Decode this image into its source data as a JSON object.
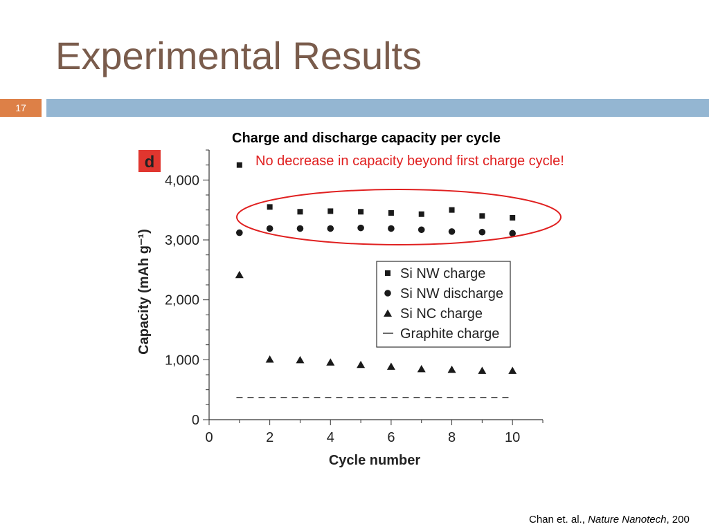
{
  "slide": {
    "title": "Experimental Results",
    "number": "17",
    "chart_heading": "Charge and discharge capacity per cycle",
    "annotation": "No decrease in capacity beyond first charge cycle!",
    "citation_authors": "Chan et. al., ",
    "citation_journal": "Nature Nanotech",
    "citation_tail": ", 200"
  },
  "colors": {
    "title": "#7a5c4c",
    "slide_number_box": "#dd8047",
    "rule_bar": "#94b6d2",
    "annotation": "#e02020",
    "panel_label_bg": "#e0362f",
    "ellipse": "#e02020",
    "marks": "#1a1a1a"
  },
  "chart_data": {
    "type": "scatter",
    "panel_label": "d",
    "xlabel": "Cycle number",
    "ylabel": "Capacity (mAh g⁻¹)",
    "xlim": [
      0,
      11
    ],
    "ylim": [
      0,
      4500
    ],
    "x_ticks": [
      0,
      2,
      4,
      6,
      8,
      10
    ],
    "y_ticks": [
      0,
      1000,
      2000,
      3000,
      4000
    ],
    "y_tick_labels": [
      "0",
      "1,000",
      "2,000",
      "3,000",
      "4,000"
    ],
    "legend_placement": "center-right",
    "series": [
      {
        "name": "Si NW charge",
        "marker": "square",
        "x": [
          1,
          2,
          3,
          4,
          5,
          6,
          7,
          8,
          9,
          10
        ],
        "y": [
          4250,
          3550,
          3470,
          3480,
          3470,
          3450,
          3430,
          3500,
          3400,
          3370
        ]
      },
      {
        "name": "Si NW discharge",
        "marker": "circle",
        "x": [
          1,
          2,
          3,
          4,
          5,
          6,
          7,
          8,
          9,
          10
        ],
        "y": [
          3120,
          3190,
          3190,
          3190,
          3200,
          3190,
          3170,
          3140,
          3130,
          3110
        ]
      },
      {
        "name": "Si NC charge",
        "marker": "triangle",
        "x": [
          1,
          2,
          3,
          4,
          5,
          6,
          7,
          8,
          9,
          10
        ],
        "y": [
          2420,
          1010,
          1000,
          960,
          920,
          890,
          850,
          840,
          820,
          820
        ]
      },
      {
        "name": "Graphite charge",
        "marker": "dash",
        "x": [
          0.9,
          10
        ],
        "y": [
          370,
          370
        ]
      }
    ],
    "highlight": "ellipse around Si NW charge and discharge points, cycles 2-10"
  }
}
